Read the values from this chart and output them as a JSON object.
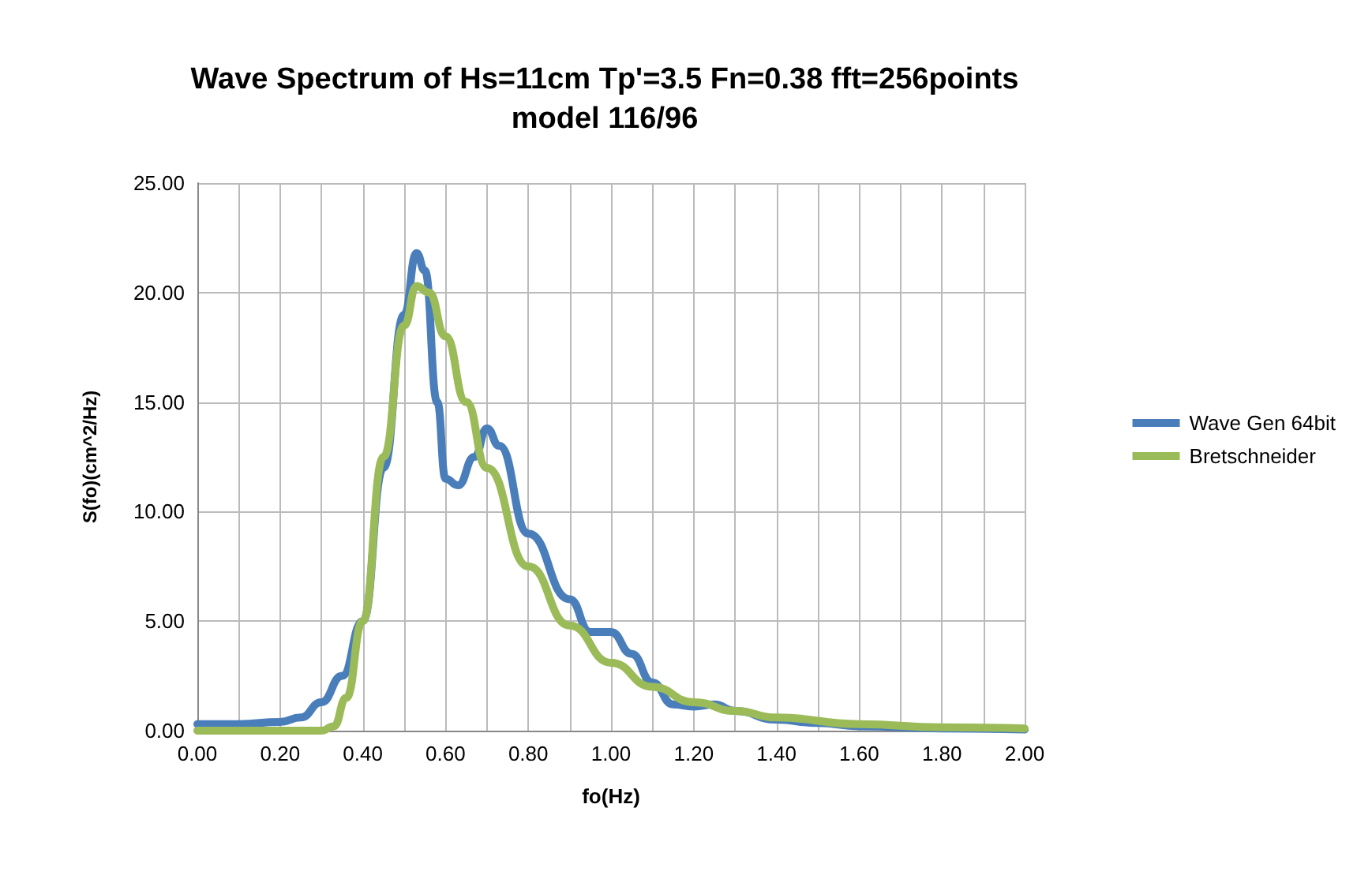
{
  "chart_data": {
    "type": "line",
    "title": "Wave Spectrum of Hs=11cm Tp'=3.5 Fn=0.38 fft=256points",
    "subtitle": "model 116/96",
    "xlabel": "fo(Hz)",
    "ylabel": "S(fo)(cm^2/Hz)",
    "xlim": [
      0,
      2
    ],
    "xticks": [
      {
        "value": 0,
        "label": "0.00"
      },
      {
        "value": 0.1,
        "label": null
      },
      {
        "value": 0.2,
        "label": "0.20"
      },
      {
        "value": 0.3,
        "label": null
      },
      {
        "value": 0.4,
        "label": "0.40"
      },
      {
        "value": 0.5,
        "label": null
      },
      {
        "value": 0.6,
        "label": "0.60"
      },
      {
        "value": 0.7,
        "label": null
      },
      {
        "value": 0.8,
        "label": "0.80"
      },
      {
        "value": 0.9,
        "label": null
      },
      {
        "value": 1.0,
        "label": "1.00"
      },
      {
        "value": 1.1,
        "label": null
      },
      {
        "value": 1.2,
        "label": "1.20"
      },
      {
        "value": 1.3,
        "label": null
      },
      {
        "value": 1.4,
        "label": "1.40"
      },
      {
        "value": 1.5,
        "label": null
      },
      {
        "value": 1.6,
        "label": "1.60"
      },
      {
        "value": 1.7,
        "label": null
      },
      {
        "value": 1.8,
        "label": "1.80"
      },
      {
        "value": 1.9,
        "label": null
      },
      {
        "value": 2.0,
        "label": "2.00"
      }
    ],
    "ylim": [
      0,
      25
    ],
    "yticks": [
      {
        "value": 0,
        "label": "0.00"
      },
      {
        "value": 5,
        "label": "5.00"
      },
      {
        "value": 10,
        "label": "10.00"
      },
      {
        "value": 15,
        "label": "15.00"
      },
      {
        "value": 20,
        "label": "20.00"
      },
      {
        "value": 25,
        "label": "25.00"
      }
    ],
    "grid": true,
    "legend": "right",
    "marker": "none",
    "line_style": "solid",
    "series": [
      {
        "name": "Wave Gen 64bit",
        "color": "#4a7ebb",
        "x": [
          0,
          0.1,
          0.2,
          0.25,
          0.3,
          0.35,
          0.4,
          0.45,
          0.5,
          0.53,
          0.55,
          0.58,
          0.6,
          0.63,
          0.67,
          0.7,
          0.73,
          0.8,
          0.9,
          0.95,
          1.0,
          1.05,
          1.1,
          1.15,
          1.2,
          1.25,
          1.3,
          1.4,
          1.5,
          1.6,
          1.8,
          2.0
        ],
        "values": [
          0.3,
          0.3,
          0.4,
          0.6,
          1.3,
          2.5,
          5,
          12,
          19,
          21.8,
          21,
          15,
          11.5,
          11.2,
          12.5,
          13.8,
          13,
          9,
          6,
          4.5,
          4.5,
          3.5,
          2.2,
          1.2,
          1.1,
          1.2,
          0.9,
          0.5,
          0.35,
          0.2,
          0.1,
          0.05
        ]
      },
      {
        "name": "Bretschneider",
        "color": "#9bbb59",
        "x": [
          0,
          0.3,
          0.33,
          0.36,
          0.4,
          0.45,
          0.5,
          0.53,
          0.56,
          0.6,
          0.65,
          0.7,
          0.8,
          0.9,
          1.0,
          1.1,
          1.2,
          1.3,
          1.4,
          1.6,
          1.8,
          2.0
        ],
        "values": [
          0,
          0,
          0.2,
          1.5,
          5,
          12.5,
          18.5,
          20.3,
          20,
          18,
          15,
          12,
          7.5,
          4.8,
          3.1,
          2.0,
          1.3,
          0.9,
          0.6,
          0.3,
          0.15,
          0.1
        ]
      }
    ]
  }
}
